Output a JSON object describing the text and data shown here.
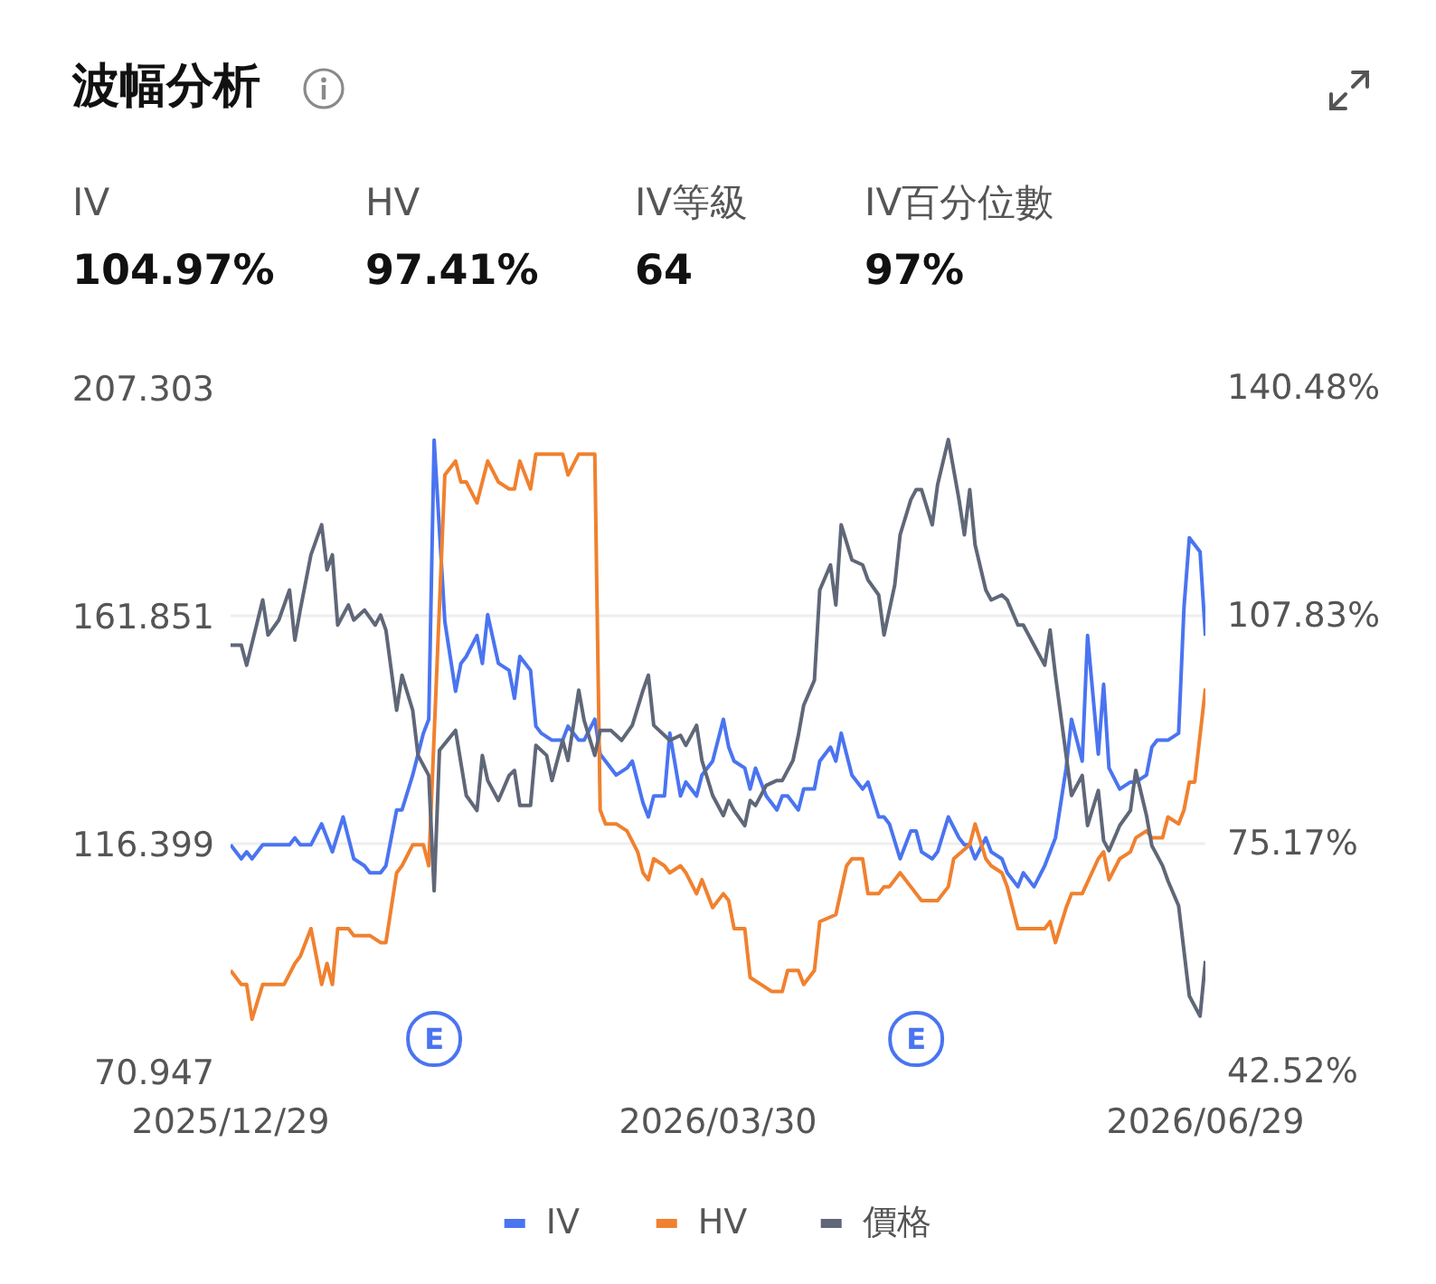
{
  "chart_data": {
    "type": "line",
    "title": "波幅分析",
    "annotations": [
      "IV",
      "104.97%",
      "HV",
      "97.41%",
      "IV等級",
      "64",
      "IV百分位數",
      "97%",
      {
        "text": "E",
        "x": "2026-02-05"
      },
      {
        "text": "E",
        "x": "2026-05-06"
      }
    ],
    "xlim": [
      "2025-12-29",
      "2026-06-29"
    ],
    "xticks": [
      {
        "value": "2025-12-29",
        "label": "2025/12/29"
      },
      {
        "value": "2026-03-30",
        "label": "2026/03/30"
      },
      {
        "value": "2026-06-29",
        "label": "2026/06/29"
      }
    ],
    "ylim": [
      70.947,
      207.303
    ],
    "yticks": [
      70.947,
      116.399,
      161.851,
      207.303
    ],
    "y2lim": [
      42.52,
      140.48
    ],
    "y2ticks": [
      {
        "value": 42.52,
        "label": "42.52%"
      },
      {
        "value": 75.17,
        "label": "75.17%"
      },
      {
        "value": 107.83,
        "label": "107.83%"
      },
      {
        "value": 140.48,
        "label": "140.48%"
      }
    ],
    "grid": "y",
    "legend": "bottom",
    "series": [
      {
        "name": "IV",
        "color": "#4a74f0",
        "axis": "y2",
        "x": [
          "2025-12-29",
          "2025-12-31",
          "2026-01-01",
          "2026-01-02",
          "2026-01-04",
          "2026-01-06",
          "2026-01-07",
          "2026-01-09",
          "2026-01-10",
          "2026-01-11",
          "2026-01-13",
          "2026-01-15",
          "2026-01-16",
          "2026-01-17",
          "2026-01-19",
          "2026-01-20",
          "2026-01-21",
          "2026-01-23",
          "2026-01-24",
          "2026-01-26",
          "2026-01-27",
          "2026-01-29",
          "2026-01-30",
          "2026-02-01",
          "2026-02-03",
          "2026-02-04",
          "2026-02-05",
          "2026-02-07",
          "2026-02-09",
          "2026-02-10",
          "2026-02-11",
          "2026-02-13",
          "2026-02-14",
          "2026-02-15",
          "2026-02-17",
          "2026-02-19",
          "2026-02-20",
          "2026-02-21",
          "2026-02-23",
          "2026-02-24",
          "2026-02-25",
          "2026-02-27",
          "2026-03-01",
          "2026-03-02",
          "2026-03-04",
          "2026-03-05",
          "2026-03-07",
          "2026-03-08",
          "2026-03-10",
          "2026-03-11",
          "2026-03-13",
          "2026-03-14",
          "2026-03-16",
          "2026-03-17",
          "2026-03-18",
          "2026-03-20",
          "2026-03-21",
          "2026-03-23",
          "2026-03-24",
          "2026-03-26",
          "2026-03-27",
          "2026-03-29",
          "2026-03-31",
          "2026-04-01",
          "2026-04-02",
          "2026-04-04",
          "2026-04-05",
          "2026-04-06",
          "2026-04-08",
          "2026-04-10",
          "2026-04-11",
          "2026-04-12",
          "2026-04-14",
          "2026-04-15",
          "2026-04-17",
          "2026-04-18",
          "2026-04-20",
          "2026-04-21",
          "2026-04-22",
          "2026-04-24",
          "2026-04-26",
          "2026-04-27",
          "2026-04-29",
          "2026-04-30",
          "2026-05-01",
          "2026-05-03",
          "2026-05-05",
          "2026-05-06",
          "2026-05-07",
          "2026-05-09",
          "2026-05-10",
          "2026-05-12",
          "2026-05-14",
          "2026-05-15",
          "2026-05-16",
          "2026-05-17",
          "2026-05-19",
          "2026-05-20",
          "2026-05-22",
          "2026-05-23",
          "2026-05-25",
          "2026-05-26",
          "2026-05-28",
          "2026-05-30",
          "2026-05-31",
          "2026-06-01",
          "2026-06-03",
          "2026-06-04",
          "2026-06-05",
          "2026-06-06",
          "2026-06-07",
          "2026-06-09",
          "2026-06-10",
          "2026-06-11",
          "2026-06-13",
          "2026-06-15",
          "2026-06-16",
          "2026-06-18",
          "2026-06-19",
          "2026-06-20",
          "2026-06-22",
          "2026-06-24",
          "2026-06-25",
          "2026-06-26",
          "2026-06-28",
          "2026-06-29"
        ],
        "values": [
          75,
          73,
          74,
          73,
          75,
          75,
          75,
          75,
          76,
          75,
          75,
          78,
          76,
          74,
          79,
          76,
          73,
          72,
          71,
          71,
          72,
          80,
          80,
          85,
          91,
          93,
          133,
          107,
          97,
          101,
          102,
          105,
          101,
          108,
          101,
          100,
          96,
          102,
          100,
          92,
          91,
          90,
          90,
          92,
          90,
          90,
          93,
          88,
          86,
          85,
          86,
          87,
          81,
          79,
          82,
          82,
          91,
          82,
          84,
          82,
          85,
          87,
          93,
          89,
          87,
          86,
          83,
          86,
          82,
          80,
          82,
          82,
          80,
          83,
          83,
          87,
          89,
          87,
          91,
          85,
          83,
          84,
          79,
          79,
          78,
          73,
          77,
          77,
          74,
          73,
          74,
          79,
          76,
          75,
          75,
          73,
          76,
          74,
          73,
          71,
          69,
          71,
          69,
          72,
          74,
          76,
          86,
          93,
          90,
          87,
          105,
          88,
          98,
          86,
          83,
          84,
          84,
          85,
          89,
          90,
          90,
          91,
          109,
          119,
          117,
          104.97
        ]
      },
      {
        "name": "HV",
        "color": "#f0812f",
        "axis": "y2",
        "x": [
          "2025-12-29",
          "2025-12-31",
          "2026-01-01",
          "2026-01-02",
          "2026-01-04",
          "2026-01-05",
          "2026-01-08",
          "2026-01-10",
          "2026-01-11",
          "2026-01-13",
          "2026-01-15",
          "2026-01-16",
          "2026-01-17",
          "2026-01-18",
          "2026-01-20",
          "2026-01-21",
          "2026-01-23",
          "2026-01-24",
          "2026-01-26",
          "2026-01-27",
          "2026-01-29",
          "2026-01-30",
          "2026-02-01",
          "2026-02-03",
          "2026-02-04",
          "2026-02-07",
          "2026-02-09",
          "2026-02-10",
          "2026-02-11",
          "2026-02-13",
          "2026-02-14",
          "2026-02-15",
          "2026-02-17",
          "2026-02-19",
          "2026-02-20",
          "2026-02-21",
          "2026-02-23",
          "2026-02-24",
          "2026-02-26",
          "2026-02-27",
          "2026-03-01",
          "2026-03-02",
          "2026-03-04",
          "2026-03-05",
          "2026-03-07",
          "2026-03-08",
          "2026-03-09",
          "2026-03-11",
          "2026-03-13",
          "2026-03-15",
          "2026-03-16",
          "2026-03-17",
          "2026-03-18",
          "2026-03-20",
          "2026-03-21",
          "2026-03-23",
          "2026-03-24",
          "2026-03-26",
          "2026-03-27",
          "2026-03-29",
          "2026-03-31",
          "2026-04-01",
          "2026-04-02",
          "2026-04-04",
          "2026-04-05",
          "2026-04-07",
          "2026-04-09",
          "2026-04-11",
          "2026-04-12",
          "2026-04-14",
          "2026-04-15",
          "2026-04-17",
          "2026-04-18",
          "2026-04-21",
          "2026-04-23",
          "2026-04-24",
          "2026-04-26",
          "2026-04-27",
          "2026-04-29",
          "2026-04-30",
          "2026-05-01",
          "2026-05-03",
          "2026-05-05",
          "2026-05-07",
          "2026-05-09",
          "2026-05-10",
          "2026-05-12",
          "2026-05-13",
          "2026-05-16",
          "2026-05-17",
          "2026-05-19",
          "2026-05-20",
          "2026-05-22",
          "2026-05-23",
          "2026-05-25",
          "2026-05-26",
          "2026-05-28",
          "2026-05-30",
          "2026-05-31",
          "2026-06-01",
          "2026-06-03",
          "2026-06-04",
          "2026-06-06",
          "2026-06-09",
          "2026-06-10",
          "2026-06-11",
          "2026-06-13",
          "2026-06-15",
          "2026-06-16",
          "2026-06-18",
          "2026-06-19",
          "2026-06-21",
          "2026-06-22",
          "2026-06-24",
          "2026-06-25",
          "2026-06-26",
          "2026-06-27",
          "2026-06-29"
        ],
        "values": [
          57,
          55,
          55,
          50,
          55,
          55,
          55,
          58,
          59,
          63,
          55,
          58,
          55,
          63,
          63,
          62,
          62,
          62,
          61,
          61,
          71,
          72,
          75,
          75,
          72,
          128,
          130,
          127,
          127,
          124,
          127,
          130,
          127,
          126,
          126,
          130,
          126,
          131,
          131,
          131,
          131,
          128,
          131,
          131,
          131,
          80,
          78,
          78,
          77,
          74,
          71,
          70,
          73,
          72,
          71,
          72,
          71,
          68,
          70,
          66,
          68,
          67,
          63,
          63,
          56,
          55,
          54,
          54,
          57,
          57,
          55,
          57,
          64,
          65,
          72,
          73,
          73,
          68,
          68,
          69,
          69,
          71,
          69,
          67,
          67,
          67,
          69,
          73,
          75,
          78,
          73,
          72,
          71,
          69,
          63,
          63,
          63,
          63,
          64,
          61,
          66,
          68,
          68,
          73,
          74,
          70,
          73,
          74,
          76,
          77,
          76,
          76,
          79,
          78,
          80,
          84,
          84,
          97.41
        ]
      },
      {
        "name": "價格",
        "color": "#5f6778",
        "x": [
          "2025-12-29",
          "2025-12-31",
          "2026-01-01",
          "2026-01-04",
          "2026-01-05",
          "2026-01-07",
          "2026-01-09",
          "2026-01-10",
          "2026-01-11",
          "2026-01-13",
          "2026-01-15",
          "2026-01-16",
          "2026-01-17",
          "2026-01-18",
          "2026-01-20",
          "2026-01-21",
          "2026-01-23",
          "2026-01-25",
          "2026-01-26",
          "2026-01-27",
          "2026-01-29",
          "2026-01-30",
          "2026-02-01",
          "2026-02-02",
          "2026-02-04",
          "2026-02-05",
          "2026-02-06",
          "2026-02-09",
          "2026-02-11",
          "2026-02-13",
          "2026-02-14",
          "2026-02-15",
          "2026-02-17",
          "2026-02-19",
          "2026-02-20",
          "2026-02-21",
          "2026-02-23",
          "2026-02-24",
          "2026-02-26",
          "2026-02-27",
          "2026-03-01",
          "2026-03-02",
          "2026-03-04",
          "2026-03-05",
          "2026-03-07",
          "2026-03-08",
          "2026-03-10",
          "2026-03-12",
          "2026-03-14",
          "2026-03-16",
          "2026-03-17",
          "2026-03-18",
          "2026-03-20",
          "2026-03-21",
          "2026-03-23",
          "2026-03-24",
          "2026-03-26",
          "2026-03-27",
          "2026-03-29",
          "2026-03-31",
          "2026-04-01",
          "2026-04-02",
          "2026-04-04",
          "2026-04-05",
          "2026-04-06",
          "2026-04-08",
          "2026-04-10",
          "2026-04-11",
          "2026-04-13",
          "2026-04-14",
          "2026-04-15",
          "2026-04-17",
          "2026-04-18",
          "2026-04-20",
          "2026-04-21",
          "2026-04-22",
          "2026-04-24",
          "2026-04-26",
          "2026-04-27",
          "2026-04-29",
          "2026-04-30",
          "2026-05-02",
          "2026-05-03",
          "2026-05-05",
          "2026-05-06",
          "2026-05-07",
          "2026-05-09",
          "2026-05-10",
          "2026-05-12",
          "2026-05-14",
          "2026-05-15",
          "2026-05-16",
          "2026-05-17",
          "2026-05-19",
          "2026-05-20",
          "2026-05-22",
          "2026-05-23",
          "2026-05-25",
          "2026-05-26",
          "2026-05-28",
          "2026-05-30",
          "2026-05-31",
          "2026-06-01",
          "2026-06-04",
          "2026-06-06",
          "2026-06-07",
          "2026-06-09",
          "2026-06-10",
          "2026-06-11",
          "2026-06-13",
          "2026-06-15",
          "2026-06-16",
          "2026-06-18",
          "2026-06-19",
          "2026-06-21",
          "2026-06-22",
          "2026-06-24",
          "2026-06-26",
          "2026-06-28",
          "2026-06-29"
        ],
        "values": [
          156,
          156,
          152,
          165,
          158,
          161,
          167,
          157,
          163,
          174,
          180,
          171,
          174,
          160,
          164,
          161,
          163,
          160,
          162,
          159,
          143,
          150,
          143,
          134,
          130,
          107,
          135,
          139,
          126,
          123,
          134,
          129,
          125,
          130,
          131,
          124,
          124,
          136,
          134,
          129,
          137,
          133,
          147,
          141,
          134,
          139,
          139,
          137,
          140,
          147,
          150,
          140,
          138,
          137,
          138,
          136,
          140,
          133,
          126,
          122,
          125,
          123,
          120,
          125,
          124,
          128,
          129,
          129,
          133,
          138,
          144,
          149,
          167,
          172,
          164,
          180,
          173,
          172,
          169,
          166,
          158,
          168,
          178,
          185,
          187,
          187,
          180,
          188,
          197,
          185,
          178,
          187,
          176,
          167,
          165,
          166,
          165,
          160,
          160,
          156,
          152,
          159,
          150,
          126,
          130,
          120,
          127,
          117,
          115,
          120,
          123,
          131,
          122,
          116,
          112,
          109,
          104,
          86,
          82,
          93
        ]
      }
    ]
  }
}
